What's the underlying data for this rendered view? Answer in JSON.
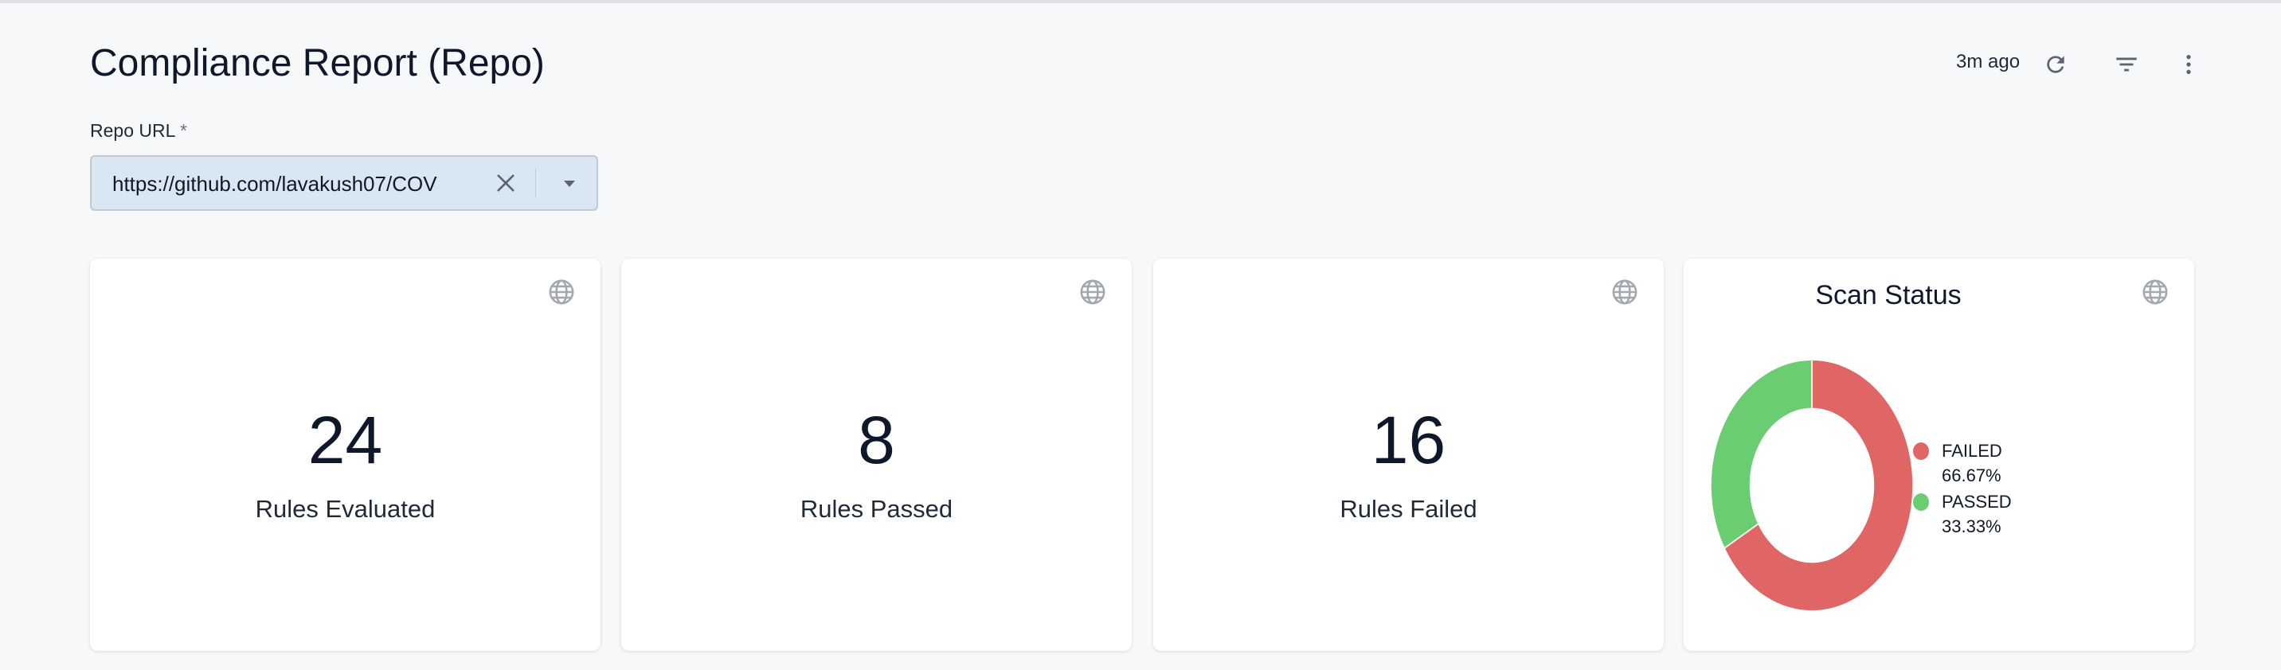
{
  "header": {
    "title": "Compliance Report (Repo)",
    "last_updated": "3m ago",
    "icons": [
      "refresh-icon",
      "filter-icon",
      "more-vert-icon"
    ]
  },
  "filter": {
    "label": "Repo URL",
    "required_mark": "*",
    "value": "https://github.com/lavakush07/COV"
  },
  "cards": [
    {
      "value": "24",
      "label": "Rules Evaluated"
    },
    {
      "value": "8",
      "label": "Rules Passed"
    },
    {
      "value": "16",
      "label": "Rules Failed"
    }
  ],
  "chart_data": {
    "type": "pie",
    "title": "Scan Status",
    "donut": true,
    "legend_position": "right",
    "slices": [
      {
        "name": "FAILED",
        "value": 66.67,
        "label": "66.67%",
        "color": "#e06666"
      },
      {
        "name": "PASSED",
        "value": 33.33,
        "label": "33.33%",
        "color": "#6acd72"
      }
    ]
  }
}
